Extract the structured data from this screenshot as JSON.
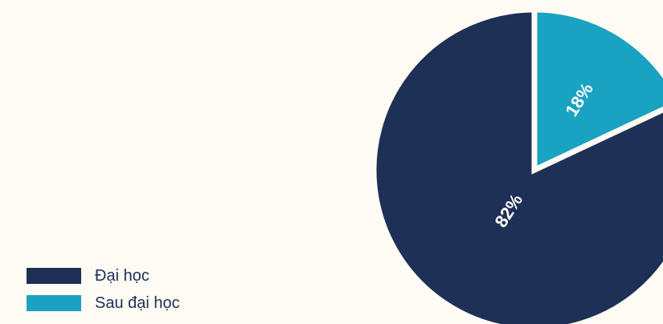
{
  "chart_data": {
    "type": "pie",
    "title": "",
    "legend_position": "bottom-left",
    "slices": [
      {
        "label": "Sau đại học",
        "value": 18,
        "value_label": "18%",
        "color": "#1aa2c2"
      },
      {
        "label": "Đại học",
        "value": 82,
        "value_label": "82%",
        "color": "#1f3056"
      }
    ],
    "legend": [
      {
        "label": "Đại học",
        "color": "#1f3056"
      },
      {
        "label": "Sau đại học",
        "color": "#1aa2c2"
      }
    ]
  },
  "colors": {
    "background": "#fdfbf3",
    "separator": "#fdfbf3"
  }
}
